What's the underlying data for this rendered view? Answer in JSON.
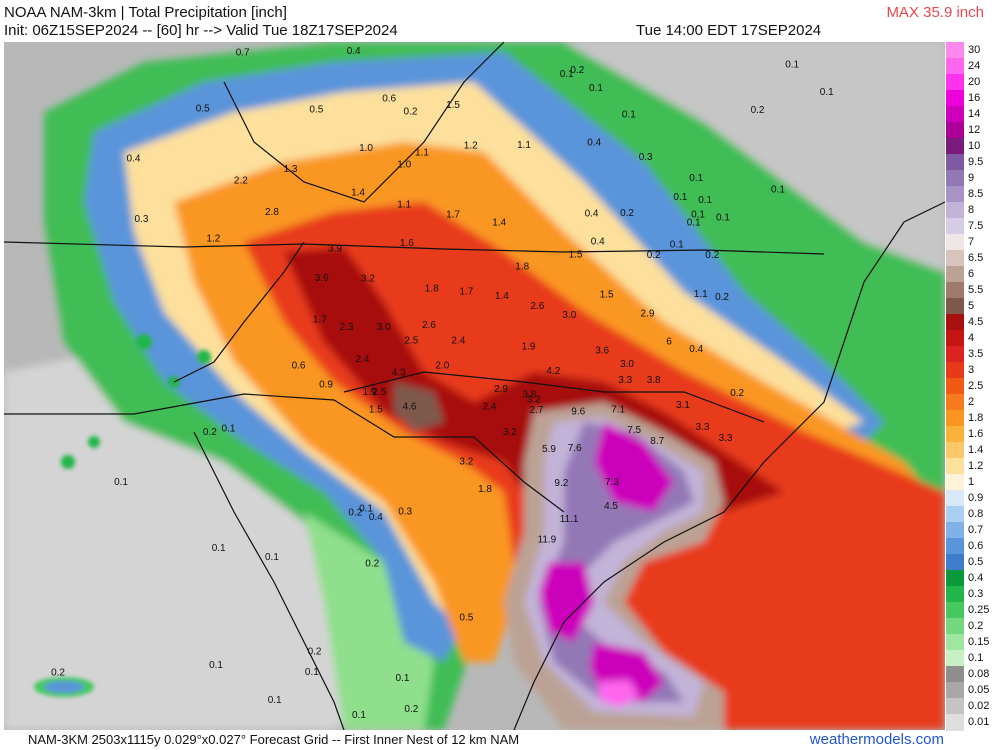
{
  "header": {
    "title": "NOAA NAM-3km | Total Precipitation [inch]",
    "init": "Init: 06Z15SEP2024 -- [60] hr --> Valid Tue 18Z17SEP2024",
    "valid_local": "Tue 14:00 EDT 17SEP2024",
    "max_value": "MAX 35.9 inch"
  },
  "footer": {
    "grid_info": "NAM-3KM 2503x1115y 0.029°x0.027° Forecast Grid -- First Inner Nest of 12 km NAM",
    "site": "weathermodels.com"
  },
  "legend": {
    "unit": "inch",
    "labels": [
      "30",
      "24",
      "20",
      "16",
      "14",
      "12",
      "10",
      "9.5",
      "9",
      "8.5",
      "8",
      "7.5",
      "7",
      "6.5",
      "6",
      "5.5",
      "5",
      "4.5",
      "4",
      "3.5",
      "3",
      "2.5",
      "2",
      "1.8",
      "1.6",
      "1.4",
      "1.2",
      "1",
      "0.9",
      "0.8",
      "0.7",
      "0.6",
      "0.5",
      "0.4",
      "0.3",
      "0.25",
      "0.2",
      "0.15",
      "0.1",
      "0.08",
      "0.05",
      "0.02",
      "0.01"
    ],
    "colors": [
      "#ff88ee",
      "#ff66ee",
      "#ff33ee",
      "#ee00dd",
      "#cc00bb",
      "#aa0099",
      "#7a1a7a",
      "#7f5aa0",
      "#9378b6",
      "#a993c6",
      "#c2b3d8",
      "#d8cde6",
      "#f0e6e6",
      "#d8c4bc",
      "#bca294",
      "#9f7b6c",
      "#7e5a4d",
      "#a81010",
      "#c41414",
      "#dd2222",
      "#e83a1a",
      "#f25a14",
      "#f77b1e",
      "#fa9620",
      "#fcb23a",
      "#fdc86a",
      "#fde09c",
      "#fff2d8",
      "#d8e8f8",
      "#aacff0",
      "#7fb2e6",
      "#5a94da",
      "#3e7ccc",
      "#0a9a3a",
      "#22b64a",
      "#45c860",
      "#74d97e",
      "#9fe69f",
      "#c8f0c4",
      "#8e8e8e",
      "#a8a8a8",
      "#c4c4c4",
      "#dedede"
    ]
  },
  "map_labels": [
    {
      "text": "0.4",
      "lon": -84.14,
      "lat": 38.54
    },
    {
      "text": "0.7",
      "lon": -85.39,
      "lat": 38.52
    },
    {
      "text": "0.5",
      "lon": -85.84,
      "lat": 37.78
    },
    {
      "text": "0.4",
      "lon": -86.62,
      "lat": 37.12
    },
    {
      "text": "0.6",
      "lon": -83.74,
      "lat": 37.91
    },
    {
      "text": "0.5",
      "lon": -84.56,
      "lat": 37.77
    },
    {
      "text": "2.2",
      "lon": -85.41,
      "lat": 36.83
    },
    {
      "text": "1.3",
      "lon": -84.85,
      "lat": 36.98
    },
    {
      "text": "1.0",
      "lon": -84.0,
      "lat": 37.26
    },
    {
      "text": "1.0",
      "lon": -83.57,
      "lat": 37.04
    },
    {
      "text": "1.1",
      "lon": -83.37,
      "lat": 37.2
    },
    {
      "text": "1.2",
      "lon": -82.82,
      "lat": 37.29
    },
    {
      "text": "1.1",
      "lon": -82.22,
      "lat": 37.3
    },
    {
      "text": "0.4",
      "lon": -81.43,
      "lat": 37.33
    },
    {
      "text": "0.3",
      "lon": -80.85,
      "lat": 37.14
    },
    {
      "text": "0.1",
      "lon": -80.28,
      "lat": 36.86
    },
    {
      "text": "0.1",
      "lon": -79.36,
      "lat": 36.71
    },
    {
      "text": "0.2",
      "lon": -79.59,
      "lat": 37.76
    },
    {
      "text": "0.1",
      "lon": -81.74,
      "lat": 38.24
    },
    {
      "text": "0.1",
      "lon": -81.41,
      "lat": 38.05
    },
    {
      "text": "0.1",
      "lon": -81.04,
      "lat": 37.7
    },
    {
      "text": "0.1",
      "lon": -79.2,
      "lat": 38.36
    },
    {
      "text": "0.1",
      "lon": -78.81,
      "lat": 38.0
    },
    {
      "text": "0.1",
      "lon": -80.46,
      "lat": 36.61
    },
    {
      "text": "0.1",
      "lon": -80.18,
      "lat": 36.57
    },
    {
      "text": "0.1",
      "lon": -79.98,
      "lat": 36.34
    },
    {
      "text": "0.1",
      "lon": -80.31,
      "lat": 36.27
    },
    {
      "text": "0.1",
      "lon": -80.5,
      "lat": 35.98
    },
    {
      "text": "0.2",
      "lon": -81.62,
      "lat": 38.29
    },
    {
      "text": "1.5",
      "lon": -83.02,
      "lat": 37.83
    },
    {
      "text": "0.2",
      "lon": -83.5,
      "lat": 37.74
    },
    {
      "text": "1.4",
      "lon": -84.09,
      "lat": 36.67
    },
    {
      "text": "1.1",
      "lon": -83.57,
      "lat": 36.51
    },
    {
      "text": "2.8",
      "lon": -85.06,
      "lat": 36.41
    },
    {
      "text": "1.2",
      "lon": -85.72,
      "lat": 36.06
    },
    {
      "text": "1.7",
      "lon": -83.02,
      "lat": 36.38
    },
    {
      "text": "1.4",
      "lon": -82.5,
      "lat": 36.27
    },
    {
      "text": "0.4",
      "lon": -81.46,
      "lat": 36.39
    },
    {
      "text": "0.2",
      "lon": -81.06,
      "lat": 36.4
    },
    {
      "text": "0.4",
      "lon": -81.39,
      "lat": 36.02
    },
    {
      "text": "0.2",
      "lon": -80.76,
      "lat": 35.84
    },
    {
      "text": "0.1",
      "lon": -80.26,
      "lat": 36.38
    },
    {
      "text": "0.2",
      "lon": -80.1,
      "lat": 35.84
    },
    {
      "text": "0.3",
      "lon": -86.53,
      "lat": 36.32
    },
    {
      "text": "3.9",
      "lon": -84.35,
      "lat": 35.93
    },
    {
      "text": "1.6",
      "lon": -83.54,
      "lat": 36.0
    },
    {
      "text": "3.9",
      "lon": -84.5,
      "lat": 35.54
    },
    {
      "text": "3.2",
      "lon": -83.98,
      "lat": 35.53
    },
    {
      "text": "1.8",
      "lon": -83.26,
      "lat": 35.4
    },
    {
      "text": "1.7",
      "lon": -82.87,
      "lat": 35.36
    },
    {
      "text": "1.8",
      "lon": -82.24,
      "lat": 35.69
    },
    {
      "text": "1.5",
      "lon": -81.64,
      "lat": 35.85
    },
    {
      "text": "1.4",
      "lon": -82.47,
      "lat": 35.3
    },
    {
      "text": "2.6",
      "lon": -82.07,
      "lat": 35.17
    },
    {
      "text": "3.0",
      "lon": -81.71,
      "lat": 35.05
    },
    {
      "text": "1.5",
      "lon": -81.29,
      "lat": 35.32
    },
    {
      "text": "2.9",
      "lon": -80.83,
      "lat": 35.07
    },
    {
      "text": "1.1",
      "lon": -80.23,
      "lat": 35.33
    },
    {
      "text": "0.2",
      "lon": -79.99,
      "lat": 35.29
    },
    {
      "text": "1.7",
      "lon": -84.52,
      "lat": 34.99
    },
    {
      "text": "2.3",
      "lon": -84.22,
      "lat": 34.89
    },
    {
      "text": "3.0",
      "lon": -83.8,
      "lat": 34.89
    },
    {
      "text": "2.6",
      "lon": -83.29,
      "lat": 34.92
    },
    {
      "text": "2.5",
      "lon": -83.49,
      "lat": 34.71
    },
    {
      "text": "2.4",
      "lon": -82.96,
      "lat": 34.71
    },
    {
      "text": "1.9",
      "lon": -82.17,
      "lat": 34.63
    },
    {
      "text": "3.6",
      "lon": -81.34,
      "lat": 34.58
    },
    {
      "text": "3.0",
      "lon": -81.06,
      "lat": 34.4
    },
    {
      "text": "6",
      "lon": -80.54,
      "lat": 34.7
    },
    {
      "text": "0.4",
      "lon": -80.28,
      "lat": 34.6
    },
    {
      "text": "4.2",
      "lon": -81.89,
      "lat": 34.31
    },
    {
      "text": "3.3",
      "lon": -81.08,
      "lat": 34.19
    },
    {
      "text": "3.8",
      "lon": -80.76,
      "lat": 34.19
    },
    {
      "text": "0.2",
      "lon": -79.82,
      "lat": 34.02
    },
    {
      "text": "2.4",
      "lon": -84.04,
      "lat": 34.47
    },
    {
      "text": "4.3",
      "lon": -83.63,
      "lat": 34.29
    },
    {
      "text": "2.0",
      "lon": -83.14,
      "lat": 34.38
    },
    {
      "text": "2.9",
      "lon": -82.48,
      "lat": 34.07
    },
    {
      "text": "3.8",
      "lon": -82.16,
      "lat": 34.0
    },
    {
      "text": "3.2",
      "lon": -82.11,
      "lat": 33.93
    },
    {
      "text": "0.6",
      "lon": -84.76,
      "lat": 34.38
    },
    {
      "text": "0.9",
      "lon": -84.45,
      "lat": 34.13
    },
    {
      "text": "1.9",
      "lon": -83.96,
      "lat": 34.03
    },
    {
      "text": "2.5",
      "lon": -83.85,
      "lat": 34.03
    },
    {
      "text": "1.5",
      "lon": -83.89,
      "lat": 33.8
    },
    {
      "text": "4.6",
      "lon": -83.51,
      "lat": 33.84
    },
    {
      "text": "2.4",
      "lon": -82.61,
      "lat": 33.84
    },
    {
      "text": "2.7",
      "lon": -82.08,
      "lat": 33.79
    },
    {
      "text": "9.6",
      "lon": -81.61,
      "lat": 33.77
    },
    {
      "text": "7.1",
      "lon": -81.16,
      "lat": 33.8
    },
    {
      "text": "3.1",
      "lon": -80.43,
      "lat": 33.86
    },
    {
      "text": "7.5",
      "lon": -80.98,
      "lat": 33.53
    },
    {
      "text": "3.3",
      "lon": -80.21,
      "lat": 33.57
    },
    {
      "text": "8.7",
      "lon": -80.72,
      "lat": 33.38
    },
    {
      "text": "3.3",
      "lon": -79.95,
      "lat": 33.42
    },
    {
      "text": "3.2",
      "lon": -82.38,
      "lat": 33.5
    },
    {
      "text": "5.9",
      "lon": -81.94,
      "lat": 33.28
    },
    {
      "text": "7.6",
      "lon": -81.65,
      "lat": 33.29
    },
    {
      "text": "3.2",
      "lon": -82.87,
      "lat": 33.11
    },
    {
      "text": "0.2",
      "lon": -85.76,
      "lat": 33.5
    },
    {
      "text": "0.1",
      "lon": -85.55,
      "lat": 33.55
    },
    {
      "text": "9.2",
      "lon": -81.8,
      "lat": 32.83
    },
    {
      "text": "7.3",
      "lon": -81.23,
      "lat": 32.84
    },
    {
      "text": "1.8",
      "lon": -82.66,
      "lat": 32.75
    },
    {
      "text": "4.5",
      "lon": -81.24,
      "lat": 32.52
    },
    {
      "text": "11.1",
      "lon": -81.74,
      "lat": 32.35
    },
    {
      "text": "11.9",
      "lon": -81.99,
      "lat": 32.08
    },
    {
      "text": "0.1",
      "lon": -86.76,
      "lat": 32.84
    },
    {
      "text": "0.2",
      "lon": -84.12,
      "lat": 32.44
    },
    {
      "text": "0.1",
      "lon": -84.0,
      "lat": 32.49
    },
    {
      "text": "0.4",
      "lon": -83.89,
      "lat": 32.38
    },
    {
      "text": "0.3",
      "lon": -83.56,
      "lat": 32.45
    },
    {
      "text": "0.1",
      "lon": -85.66,
      "lat": 31.97
    },
    {
      "text": "0.1",
      "lon": -85.06,
      "lat": 31.85
    },
    {
      "text": "0.2",
      "lon": -83.93,
      "lat": 31.76
    },
    {
      "text": "0.5",
      "lon": -82.87,
      "lat": 31.05
    },
    {
      "text": "0.2",
      "lon": -84.58,
      "lat": 30.6
    },
    {
      "text": "0.1",
      "lon": -84.61,
      "lat": 30.33
    },
    {
      "text": "0.1",
      "lon": -85.69,
      "lat": 30.42
    },
    {
      "text": "0.1",
      "lon": -83.59,
      "lat": 30.25
    },
    {
      "text": "0.2",
      "lon": -87.47,
      "lat": 30.32
    },
    {
      "text": "0.1",
      "lon": -85.03,
      "lat": 29.96
    },
    {
      "text": "0.1",
      "lon": -84.08,
      "lat": 29.76
    },
    {
      "text": "0.2",
      "lon": -83.49,
      "lat": 29.84
    }
  ]
}
